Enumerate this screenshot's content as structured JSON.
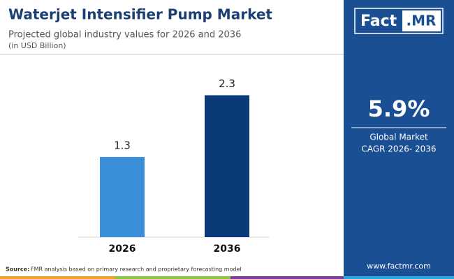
{
  "header": {
    "title": "Waterjet Intensifier Pump Market",
    "subtitle": "Projected global industry values for 2026 and 2036",
    "unit_note": "(in USD Billion)"
  },
  "chart_data": {
    "type": "bar",
    "categories": [
      "2026",
      "2036"
    ],
    "values": [
      1.3,
      2.3
    ],
    "colors": [
      "#3a8fd8",
      "#0b3a78"
    ],
    "ylim": [
      0,
      2.6
    ]
  },
  "sidebar": {
    "logo_main": "Fact",
    "logo_suffix": ".MR",
    "cagr": "5.9%",
    "cagr_label_1": "Global Market",
    "cagr_label_2": "CAGR 2026- 2036",
    "website": "www.factmr.com"
  },
  "footer": {
    "source_label": "Source:",
    "source_text": "FMR analysis based on primary research and proprietary forecasting model"
  }
}
